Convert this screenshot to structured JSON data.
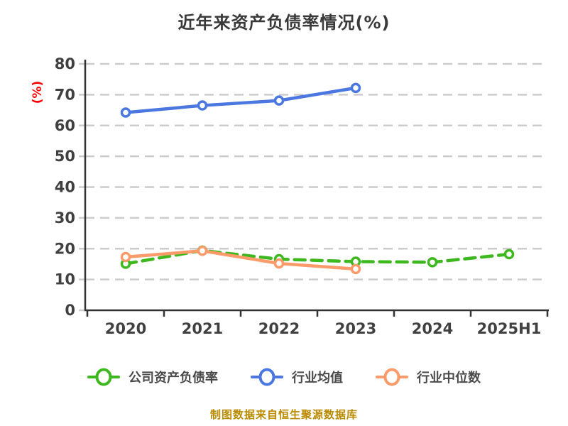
{
  "chart_data": {
    "type": "line",
    "title": "近年来资产负债率情况(%)",
    "ylabel": "(%)",
    "xlabel": "",
    "source_note": "制图数据来自恒生聚源数据库",
    "categories": [
      "2020",
      "2021",
      "2022",
      "2023",
      "2024",
      "2025H1"
    ],
    "series": [
      {
        "id": "company",
        "name": "公司资产负债率",
        "color": "#3DB81F",
        "line_style": "dashed",
        "values": [
          15.1,
          19.4,
          16.6,
          15.8,
          15.6,
          18.2
        ]
      },
      {
        "id": "industry-avg",
        "name": "行业均值",
        "color": "#4A78E0",
        "line_style": "solid",
        "values": [
          64.2,
          66.5,
          68.1,
          72.2,
          null,
          null
        ]
      },
      {
        "id": "industry-median",
        "name": "行业中位数",
        "color": "#FA9B69",
        "line_style": "solid",
        "values": [
          17.3,
          19.3,
          15.2,
          13.4,
          null,
          null
        ]
      }
    ],
    "ylim": [
      0,
      80
    ],
    "yticks": [
      0,
      10,
      20,
      30,
      40,
      50,
      60,
      70,
      80
    ],
    "grid": "horizontal-dashed",
    "legend_position": "bottom",
    "colors": {
      "background": "#FFFFFF",
      "grid": "#CCCCCC",
      "axis": "#333333",
      "tick_label": "#404040",
      "title": "#3A3A3A",
      "ylabel": "#FF0000",
      "legend_label": "#4A4A4A",
      "caption": "#BA8B00",
      "marker_fill": "#FFFFFF"
    }
  }
}
